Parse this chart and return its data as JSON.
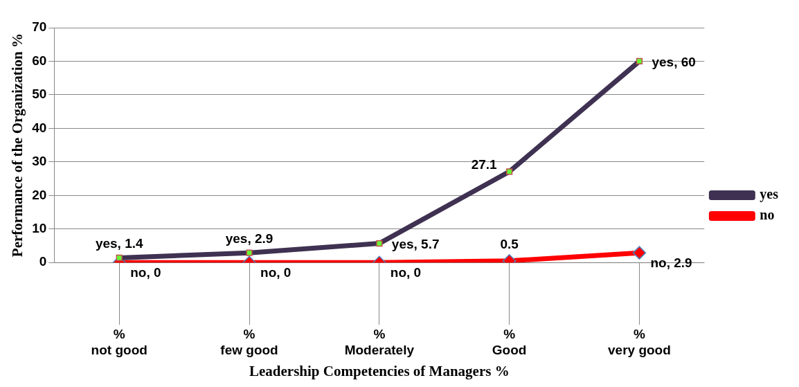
{
  "chart_data": {
    "type": "line",
    "xlabel": "Leadership Competencies of Managers %",
    "ylabel": "Performance of the Organization %",
    "categories": [
      "%\nnot good",
      "%\nfew good",
      "%\nModerately",
      "%\nGood",
      "%\nvery good"
    ],
    "series": [
      {
        "name": "yes",
        "color": "#3f3151",
        "marker": "square",
        "values": [
          1.4,
          2.9,
          5.7,
          27.1,
          60
        ],
        "value_labels": [
          "yes, 1.4",
          "yes, 2.9",
          "yes, 5.7",
          "27.1",
          "yes, 60"
        ]
      },
      {
        "name": "no",
        "color": "#ff0000",
        "marker": "diamond",
        "values": [
          0,
          0,
          0,
          0.5,
          2.9
        ],
        "value_labels": [
          "no, 0",
          "no, 0",
          "no, 0",
          "0.5",
          "no, 2.9"
        ]
      }
    ],
    "ylim": [
      0,
      70
    ],
    "yticks": [
      0,
      10,
      20,
      30,
      40,
      50,
      60,
      70
    ],
    "grid": "y",
    "legend": "right",
    "line_style": "solid"
  }
}
